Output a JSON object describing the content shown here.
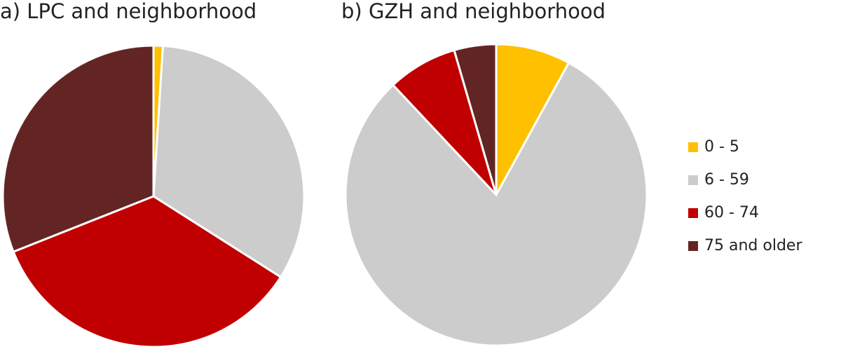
{
  "chart_data": [
    {
      "type": "pie",
      "title": "a) LPC and neighborhood",
      "categories": [
        "0 - 5",
        "6 - 59",
        "60 - 74",
        "75 and older"
      ],
      "values": [
        1,
        33,
        35,
        31
      ],
      "colors": [
        "#ffc000",
        "#cccccc",
        "#c00000",
        "#632523"
      ]
    },
    {
      "type": "pie",
      "title": "b) GZH and neighborhood",
      "categories": [
        "0 - 5",
        "6 - 59",
        "60 - 74",
        "75 and older"
      ],
      "values": [
        8,
        80,
        7.5,
        4.5
      ],
      "colors": [
        "#ffc000",
        "#cccccc",
        "#c00000",
        "#632523"
      ]
    }
  ]
}
